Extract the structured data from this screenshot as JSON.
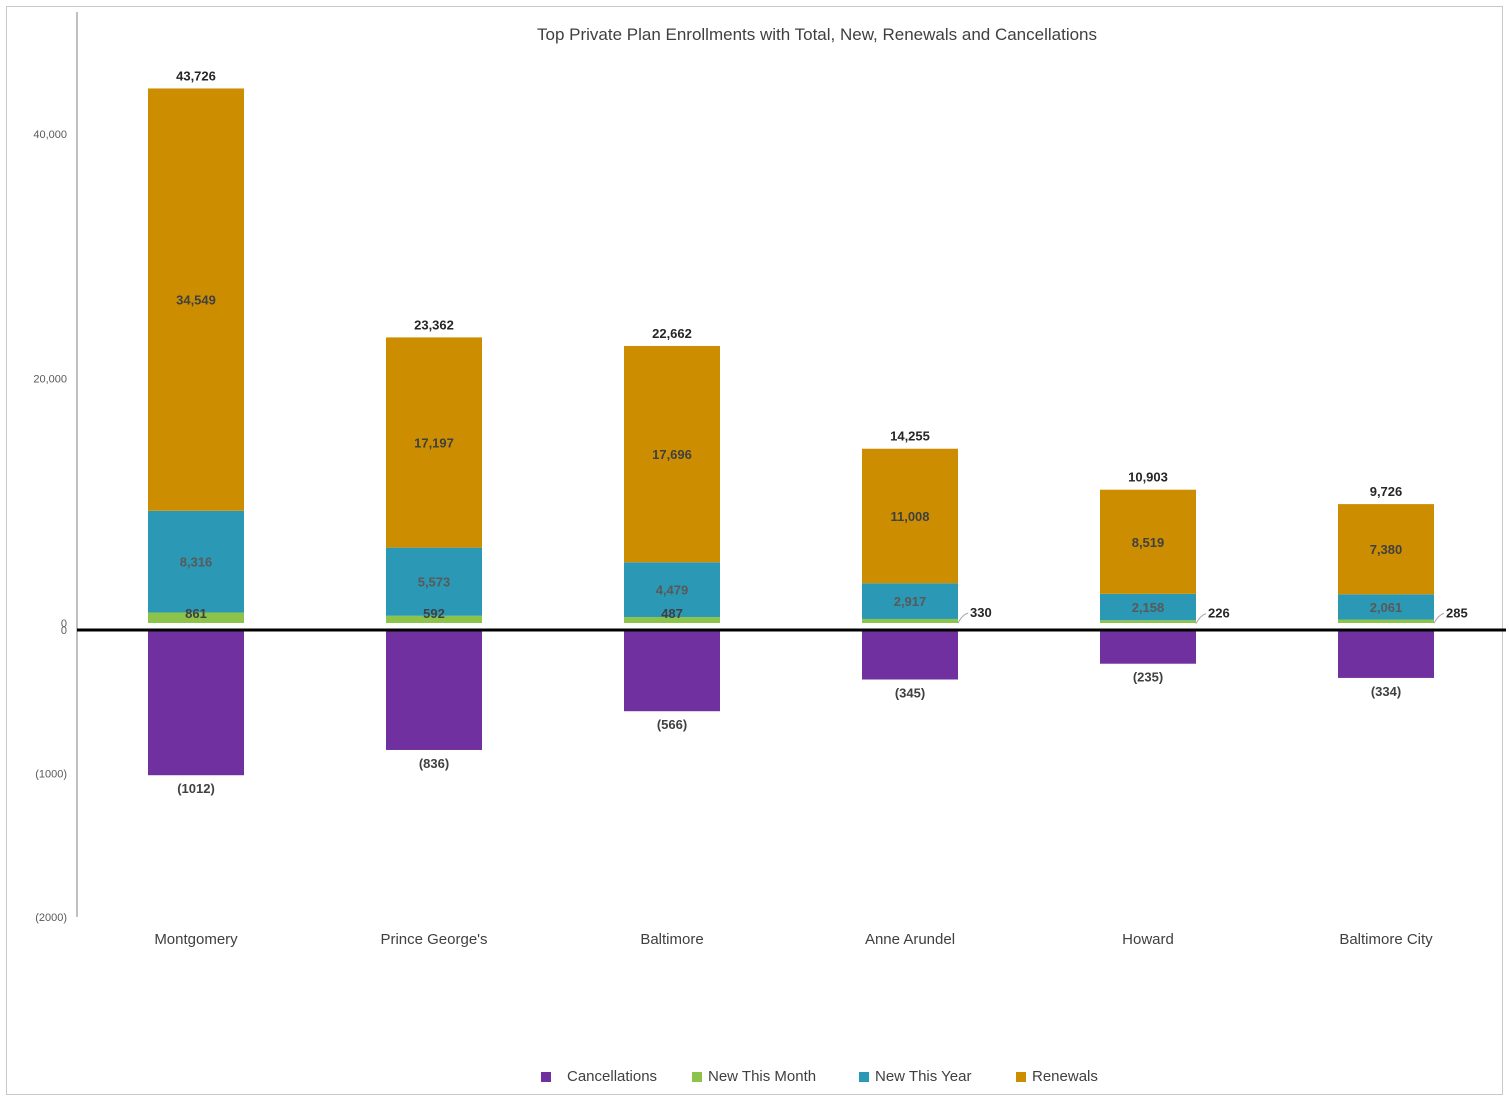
{
  "chart_data": {
    "type": "bar",
    "stacked": true,
    "title": "Top Private Plan Enrollments with Total, New, Renewals and Cancellations",
    "xlabel": "",
    "ylabel": "",
    "categories": [
      "Montgomery",
      "Prince George's",
      "Baltimore",
      "Anne Arundel",
      "Howard",
      "Baltimore City"
    ],
    "series": [
      {
        "name": "Cancellations",
        "color": "#7030a0",
        "values": [
          -1012,
          -836,
          -566,
          -345,
          -235,
          -334
        ],
        "labels": [
          "(1012)",
          "(836)",
          "(566)",
          "(345)",
          "(235)",
          "(334)"
        ]
      },
      {
        "name": "New This Month",
        "color": "#8cc34b",
        "values": [
          861,
          592,
          487,
          330,
          226,
          285
        ],
        "labels": [
          "861",
          "592",
          "487",
          "330",
          "226",
          "285"
        ]
      },
      {
        "name": "New This Year",
        "color": "#2b98b5",
        "values": [
          8316,
          5573,
          4479,
          2917,
          2158,
          2061
        ],
        "labels": [
          "8,316",
          "5,573",
          "4,479",
          "2,917",
          "2,158",
          "2,061"
        ]
      },
      {
        "name": "Renewals",
        "color": "#cc8e00",
        "values": [
          34549,
          17197,
          17696,
          11008,
          8519,
          7380
        ],
        "labels": [
          "34,549",
          "17,197",
          "17,696",
          "11,008",
          "8,519",
          "7,380"
        ]
      }
    ],
    "totals": [
      43726,
      23362,
      22662,
      14255,
      10903,
      9726
    ],
    "total_labels": [
      "43,726",
      "23,362",
      "22,662",
      "14,255",
      "10,903",
      "9,726"
    ],
    "positive_axis": {
      "range": [
        0,
        44000
      ],
      "ticks": [
        0,
        20000,
        40000
      ],
      "tick_labels": [
        "0",
        "20,000",
        "40,000"
      ]
    },
    "negative_axis": {
      "range": [
        -2000,
        0
      ],
      "ticks": [
        -1000,
        -2000
      ],
      "tick_labels": [
        "(1000)",
        "(2000)"
      ]
    },
    "grid": false,
    "legend_position": "bottom"
  }
}
